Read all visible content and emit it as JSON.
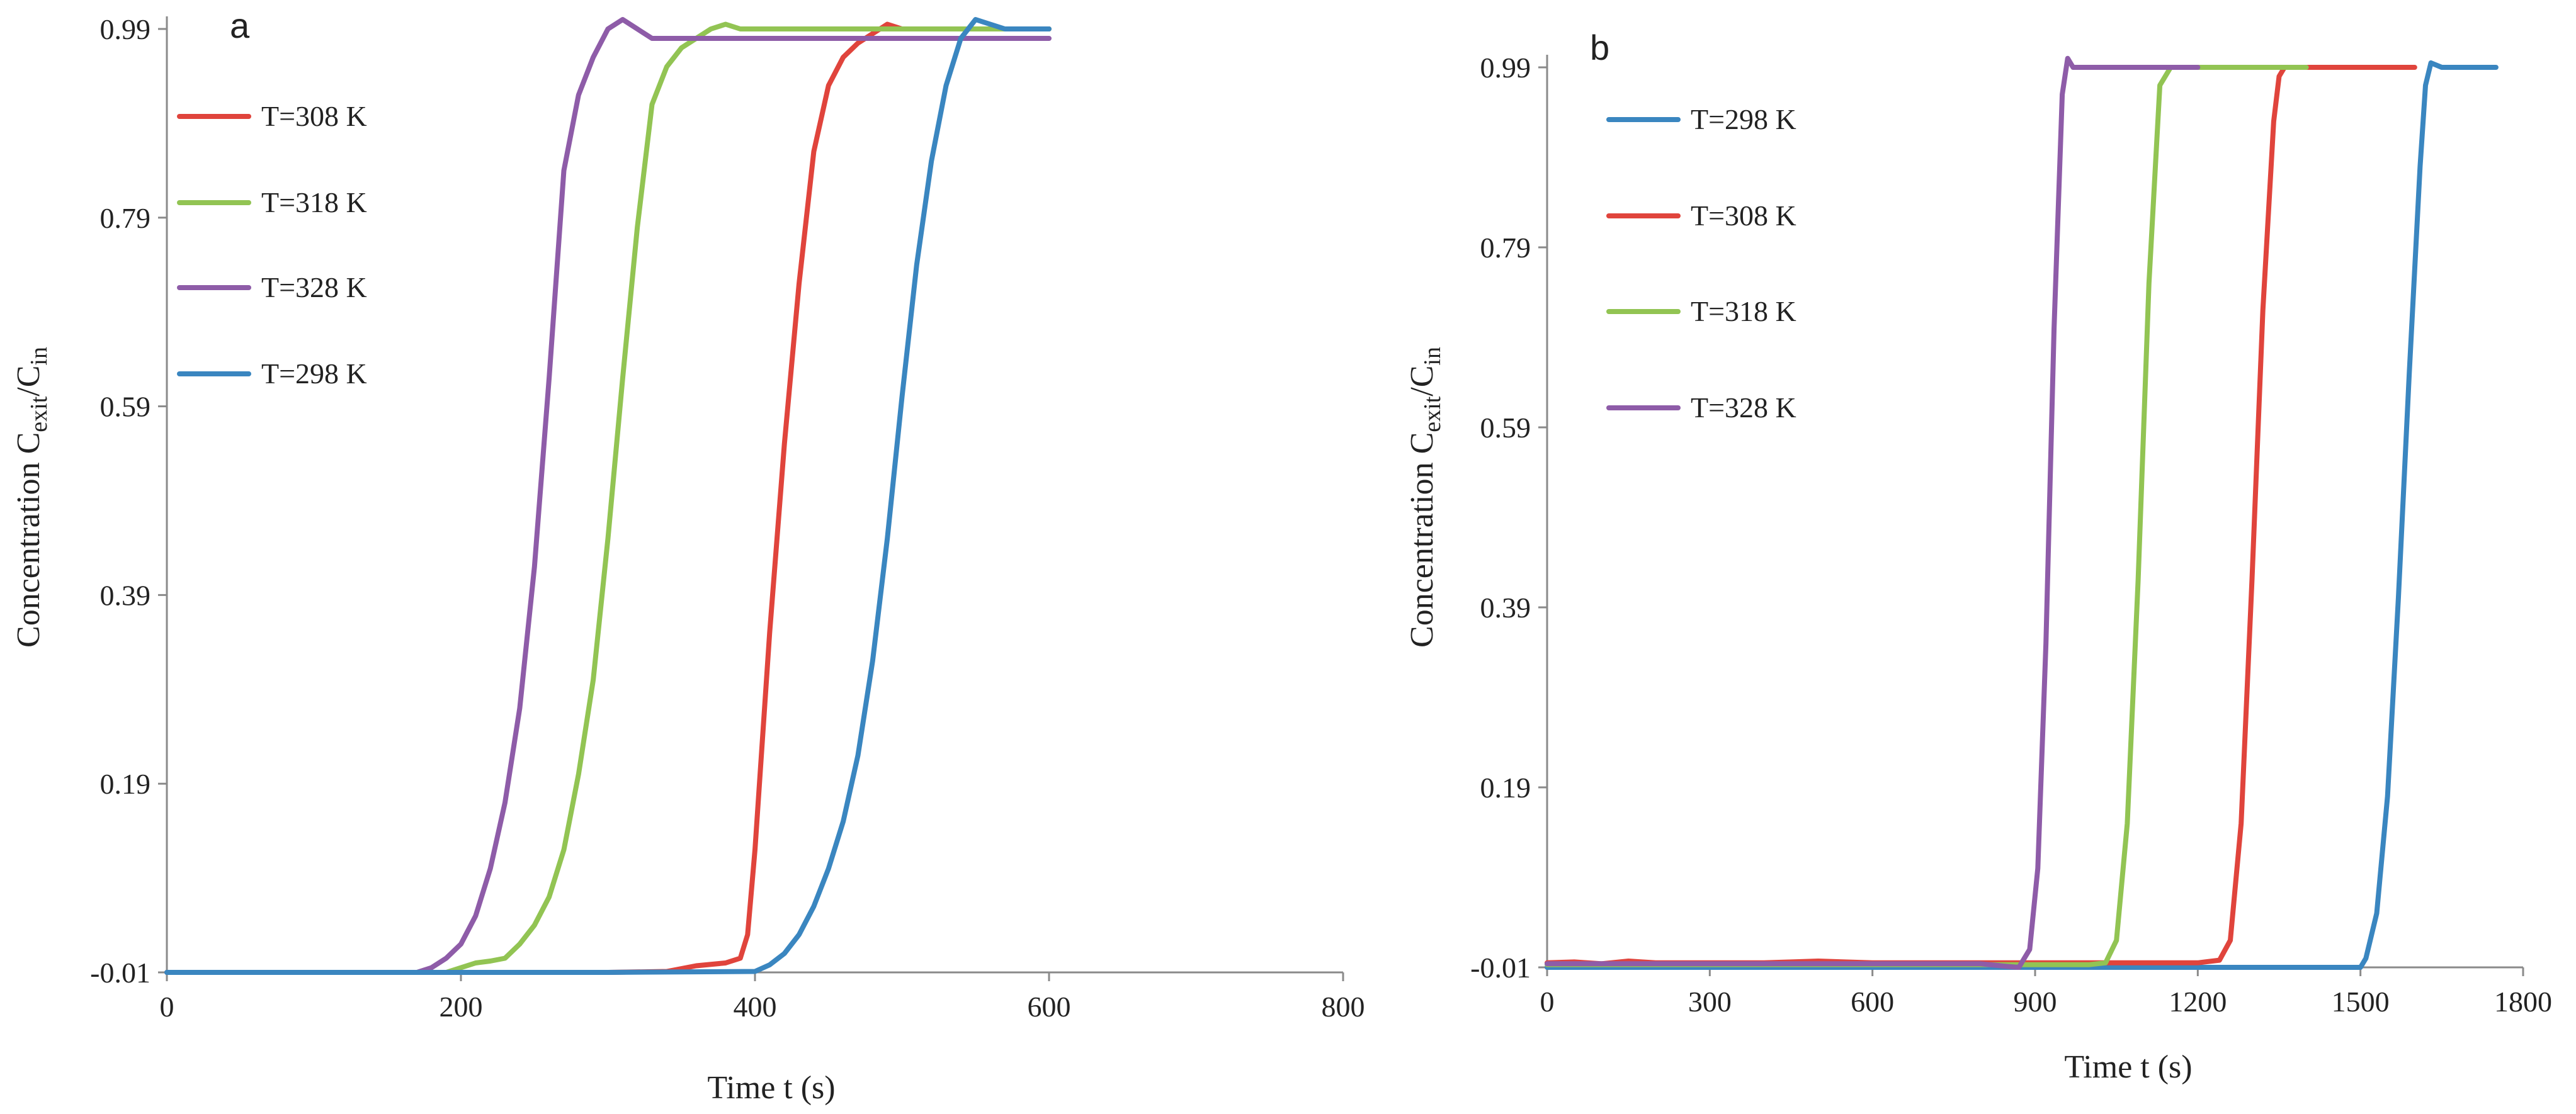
{
  "chart_data": [
    {
      "panel_label": "a",
      "type": "line",
      "xlabel": "Time t (s)",
      "ylabel": {
        "prefix": "Concentration  C",
        "sub1": "exit",
        "slash": "/C",
        "sub2": "in"
      },
      "xlim": [
        0,
        800
      ],
      "ylim": [
        -0.01,
        0.99
      ],
      "x_ticks": [
        0,
        200,
        400,
        600,
        800
      ],
      "y_ticks": [
        -0.01,
        0.19,
        0.39,
        0.59,
        0.79,
        0.99
      ],
      "x_tick_labels": [
        "0",
        "200",
        "400",
        "600",
        "800"
      ],
      "y_tick_labels": [
        "-0.01",
        "0.19",
        "0.39",
        "0.59",
        "0.79",
        "0.99"
      ],
      "legend": {
        "position": "top-left",
        "entries": [
          "T=308 K",
          "T=318 K",
          "T=328 K",
          "T=298 K"
        ]
      },
      "series": [
        {
          "name": "T=308 K",
          "color": "#e0443c",
          "x": [
            0,
            100,
            200,
            300,
            340,
            360,
            380,
            390,
            395,
            400,
            410,
            420,
            430,
            440,
            450,
            460,
            470,
            480,
            490,
            500,
            600
          ],
          "y": [
            -0.01,
            -0.01,
            -0.01,
            -0.01,
            -0.009,
            -0.003,
            0.0,
            0.005,
            0.03,
            0.12,
            0.35,
            0.55,
            0.72,
            0.86,
            0.93,
            0.96,
            0.975,
            0.985,
            0.995,
            0.99,
            0.99
          ]
        },
        {
          "name": "T=318 K",
          "color": "#92c453",
          "x": [
            0,
            100,
            190,
            200,
            210,
            220,
            230,
            240,
            250,
            260,
            270,
            280,
            290,
            300,
            310,
            320,
            330,
            340,
            350,
            360,
            370,
            380,
            390,
            600
          ],
          "y": [
            -0.01,
            -0.01,
            -0.01,
            -0.005,
            0.0,
            0.002,
            0.005,
            0.02,
            0.04,
            0.07,
            0.12,
            0.2,
            0.3,
            0.45,
            0.62,
            0.78,
            0.91,
            0.95,
            0.97,
            0.98,
            0.99,
            0.995,
            0.99,
            0.99
          ]
        },
        {
          "name": "T=328 K",
          "color": "#8e5ca8",
          "x": [
            0,
            100,
            170,
            180,
            190,
            200,
            210,
            220,
            230,
            240,
            250,
            260,
            270,
            280,
            290,
            300,
            310,
            320,
            330,
            340,
            350,
            600
          ],
          "y": [
            -0.01,
            -0.01,
            -0.01,
            -0.005,
            0.005,
            0.02,
            0.05,
            0.1,
            0.17,
            0.27,
            0.42,
            0.62,
            0.84,
            0.92,
            0.96,
            0.99,
            1.0,
            0.99,
            0.98,
            0.98,
            0.98,
            0.98
          ]
        },
        {
          "name": "T=298 K",
          "color": "#3a86c0",
          "x": [
            0,
            100,
            200,
            300,
            400,
            410,
            420,
            430,
            440,
            450,
            460,
            470,
            480,
            490,
            500,
            510,
            520,
            530,
            540,
            550,
            560,
            570,
            600
          ],
          "y": [
            -0.01,
            -0.01,
            -0.01,
            -0.01,
            -0.009,
            -0.002,
            0.01,
            0.03,
            0.06,
            0.1,
            0.15,
            0.22,
            0.32,
            0.45,
            0.6,
            0.74,
            0.85,
            0.93,
            0.98,
            1.0,
            0.995,
            0.99,
            0.99
          ]
        }
      ]
    },
    {
      "panel_label": "b",
      "type": "line",
      "xlabel": "Time t (s)",
      "ylabel": {
        "prefix": "Concentration  C",
        "sub1": "exit",
        "slash": "/C",
        "sub2": "in"
      },
      "xlim": [
        0,
        1800
      ],
      "ylim": [
        -0.01,
        0.99
      ],
      "x_ticks": [
        0,
        300,
        600,
        900,
        1200,
        1500,
        1800
      ],
      "y_ticks": [
        -0.01,
        0.19,
        0.39,
        0.59,
        0.79,
        0.99
      ],
      "x_tick_labels": [
        "0",
        "300",
        "600",
        "900",
        "1200",
        "1500",
        "1800"
      ],
      "y_tick_labels": [
        "-0.01",
        "0.19",
        "0.39",
        "0.59",
        "0.79",
        "0.99"
      ],
      "legend": {
        "position": "top-left",
        "entries": [
          "T=298 K",
          "T=308 K",
          "T=318 K",
          "T=328 K"
        ]
      },
      "series": [
        {
          "name": "T=298 K",
          "color": "#3a86c0",
          "x": [
            0,
            300,
            600,
            900,
            1200,
            1500,
            1510,
            1530,
            1550,
            1570,
            1590,
            1610,
            1620,
            1630,
            1650,
            1700,
            1750
          ],
          "y": [
            -0.01,
            -0.01,
            -0.01,
            -0.01,
            -0.01,
            -0.01,
            0.0,
            0.05,
            0.18,
            0.4,
            0.65,
            0.88,
            0.97,
            0.995,
            0.99,
            0.99,
            0.99
          ]
        },
        {
          "name": "T=308 K",
          "color": "#e0443c",
          "x": [
            0,
            50,
            100,
            150,
            200,
            400,
            500,
            600,
            900,
            1200,
            1240,
            1260,
            1280,
            1300,
            1320,
            1340,
            1350,
            1360,
            1400,
            1600
          ],
          "y": [
            -0.005,
            -0.004,
            -0.006,
            -0.003,
            -0.005,
            -0.005,
            -0.003,
            -0.005,
            -0.005,
            -0.005,
            -0.002,
            0.02,
            0.15,
            0.42,
            0.72,
            0.93,
            0.98,
            0.99,
            0.99,
            0.99
          ]
        },
        {
          "name": "T=318 K",
          "color": "#92c453",
          "x": [
            0,
            300,
            600,
            900,
            1000,
            1030,
            1050,
            1070,
            1090,
            1110,
            1130,
            1150,
            1180,
            1400
          ],
          "y": [
            -0.007,
            -0.007,
            -0.007,
            -0.007,
            -0.007,
            -0.005,
            0.02,
            0.15,
            0.42,
            0.75,
            0.97,
            0.99,
            0.99,
            0.99
          ]
        },
        {
          "name": "T=328 K",
          "color": "#8e5ca8",
          "x": [
            0,
            300,
            600,
            800,
            850,
            870,
            890,
            905,
            920,
            935,
            950,
            960,
            970,
            1000,
            1200
          ],
          "y": [
            -0.006,
            -0.006,
            -0.006,
            -0.006,
            -0.009,
            -0.01,
            0.01,
            0.1,
            0.35,
            0.7,
            0.96,
            1.0,
            0.99,
            0.99,
            0.99
          ]
        }
      ]
    }
  ]
}
